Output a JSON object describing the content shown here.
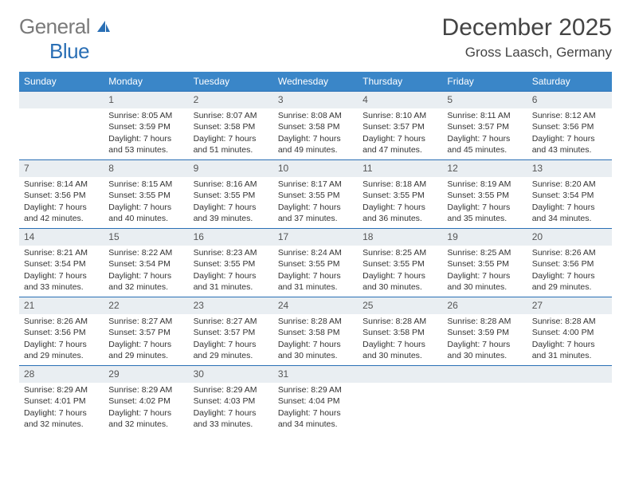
{
  "logo": {
    "general": "General",
    "blue": "Blue"
  },
  "title": "December 2025",
  "location": "Gross Laasch, Germany",
  "colors": {
    "header_bg": "#3a86c8",
    "daynum_bg": "#e9eef2",
    "row_border": "#2a6fb5",
    "text": "#333333",
    "logo_blue": "#2a6fb5",
    "logo_gray": "#7a7a7a"
  },
  "daysOfWeek": [
    "Sunday",
    "Monday",
    "Tuesday",
    "Wednesday",
    "Thursday",
    "Friday",
    "Saturday"
  ],
  "grid": {
    "startOffset": 1,
    "numDays": 31
  },
  "days": {
    "1": {
      "sunrise": "8:05 AM",
      "sunset": "3:59 PM",
      "daylight": "7 hours and 53 minutes."
    },
    "2": {
      "sunrise": "8:07 AM",
      "sunset": "3:58 PM",
      "daylight": "7 hours and 51 minutes."
    },
    "3": {
      "sunrise": "8:08 AM",
      "sunset": "3:58 PM",
      "daylight": "7 hours and 49 minutes."
    },
    "4": {
      "sunrise": "8:10 AM",
      "sunset": "3:57 PM",
      "daylight": "7 hours and 47 minutes."
    },
    "5": {
      "sunrise": "8:11 AM",
      "sunset": "3:57 PM",
      "daylight": "7 hours and 45 minutes."
    },
    "6": {
      "sunrise": "8:12 AM",
      "sunset": "3:56 PM",
      "daylight": "7 hours and 43 minutes."
    },
    "7": {
      "sunrise": "8:14 AM",
      "sunset": "3:56 PM",
      "daylight": "7 hours and 42 minutes."
    },
    "8": {
      "sunrise": "8:15 AM",
      "sunset": "3:55 PM",
      "daylight": "7 hours and 40 minutes."
    },
    "9": {
      "sunrise": "8:16 AM",
      "sunset": "3:55 PM",
      "daylight": "7 hours and 39 minutes."
    },
    "10": {
      "sunrise": "8:17 AM",
      "sunset": "3:55 PM",
      "daylight": "7 hours and 37 minutes."
    },
    "11": {
      "sunrise": "8:18 AM",
      "sunset": "3:55 PM",
      "daylight": "7 hours and 36 minutes."
    },
    "12": {
      "sunrise": "8:19 AM",
      "sunset": "3:55 PM",
      "daylight": "7 hours and 35 minutes."
    },
    "13": {
      "sunrise": "8:20 AM",
      "sunset": "3:54 PM",
      "daylight": "7 hours and 34 minutes."
    },
    "14": {
      "sunrise": "8:21 AM",
      "sunset": "3:54 PM",
      "daylight": "7 hours and 33 minutes."
    },
    "15": {
      "sunrise": "8:22 AM",
      "sunset": "3:54 PM",
      "daylight": "7 hours and 32 minutes."
    },
    "16": {
      "sunrise": "8:23 AM",
      "sunset": "3:55 PM",
      "daylight": "7 hours and 31 minutes."
    },
    "17": {
      "sunrise": "8:24 AM",
      "sunset": "3:55 PM",
      "daylight": "7 hours and 31 minutes."
    },
    "18": {
      "sunrise": "8:25 AM",
      "sunset": "3:55 PM",
      "daylight": "7 hours and 30 minutes."
    },
    "19": {
      "sunrise": "8:25 AM",
      "sunset": "3:55 PM",
      "daylight": "7 hours and 30 minutes."
    },
    "20": {
      "sunrise": "8:26 AM",
      "sunset": "3:56 PM",
      "daylight": "7 hours and 29 minutes."
    },
    "21": {
      "sunrise": "8:26 AM",
      "sunset": "3:56 PM",
      "daylight": "7 hours and 29 minutes."
    },
    "22": {
      "sunrise": "8:27 AM",
      "sunset": "3:57 PM",
      "daylight": "7 hours and 29 minutes."
    },
    "23": {
      "sunrise": "8:27 AM",
      "sunset": "3:57 PM",
      "daylight": "7 hours and 29 minutes."
    },
    "24": {
      "sunrise": "8:28 AM",
      "sunset": "3:58 PM",
      "daylight": "7 hours and 30 minutes."
    },
    "25": {
      "sunrise": "8:28 AM",
      "sunset": "3:58 PM",
      "daylight": "7 hours and 30 minutes."
    },
    "26": {
      "sunrise": "8:28 AM",
      "sunset": "3:59 PM",
      "daylight": "7 hours and 30 minutes."
    },
    "27": {
      "sunrise": "8:28 AM",
      "sunset": "4:00 PM",
      "daylight": "7 hours and 31 minutes."
    },
    "28": {
      "sunrise": "8:29 AM",
      "sunset": "4:01 PM",
      "daylight": "7 hours and 32 minutes."
    },
    "29": {
      "sunrise": "8:29 AM",
      "sunset": "4:02 PM",
      "daylight": "7 hours and 32 minutes."
    },
    "30": {
      "sunrise": "8:29 AM",
      "sunset": "4:03 PM",
      "daylight": "7 hours and 33 minutes."
    },
    "31": {
      "sunrise": "8:29 AM",
      "sunset": "4:04 PM",
      "daylight": "7 hours and 34 minutes."
    }
  },
  "labels": {
    "sunrise": "Sunrise: ",
    "sunset": "Sunset: ",
    "daylight": "Daylight: "
  }
}
